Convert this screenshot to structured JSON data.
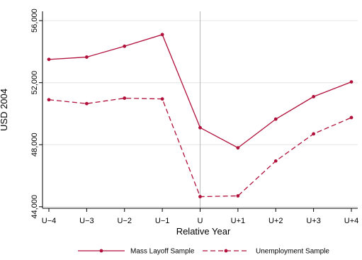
{
  "chart_data": {
    "type": "line",
    "xlabel": "Relative Year",
    "ylabel": "USD 2004",
    "categories": [
      "U−4",
      "U−3",
      "U−2",
      "U−1",
      "U",
      "U+1",
      "U+2",
      "U+3",
      "U+4"
    ],
    "ylim": [
      43900,
      56600
    ],
    "yticks": [
      44000,
      48000,
      52000,
      56000
    ],
    "ytick_labels": [
      "44,000",
      "48,000",
      "52,000",
      "56,000"
    ],
    "reference_line_category": "U",
    "grid": "horizontal",
    "legend_position": "bottom",
    "series": [
      {
        "name": "Mass Layoff Sample",
        "style": "solid",
        "color": "#b0103a",
        "values": [
          53500,
          53650,
          54350,
          55100,
          49100,
          47800,
          49650,
          51100,
          52050
        ]
      },
      {
        "name": "Unemployment Sample",
        "style": "dashed",
        "color": "#b0103a",
        "values": [
          50900,
          50650,
          51000,
          50950,
          44650,
          44700,
          46950,
          48700,
          49750
        ]
      }
    ]
  }
}
